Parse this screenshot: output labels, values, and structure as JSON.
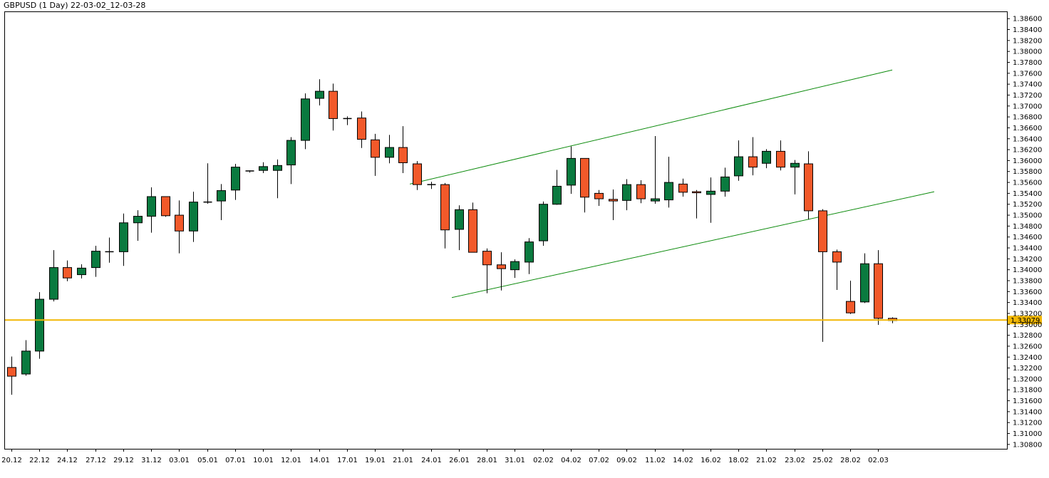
{
  "header": {
    "title": "GBPUSD (1 Day) 22-03-02_12-03-28"
  },
  "colors": {
    "bull": "#0a7a3f",
    "bear": "#f2592a",
    "wick": "#000000",
    "channel": "#0b8a0b",
    "support": "#f2b705",
    "frame": "#000000"
  },
  "chart_data": {
    "type": "candlestick",
    "title": "GBPUSD (1 Day) 22-03-02_12-03-28",
    "ylim": [
      1.3072,
      1.3872
    ],
    "yticks": [
      "1.38600",
      "1.38400",
      "1.38200",
      "1.38000",
      "1.37800",
      "1.37600",
      "1.37400",
      "1.37200",
      "1.37000",
      "1.36800",
      "1.36600",
      "1.36400",
      "1.36200",
      "1.36000",
      "1.35800",
      "1.35600",
      "1.35400",
      "1.35200",
      "1.35000",
      "1.34800",
      "1.34600",
      "1.34400",
      "1.34200",
      "1.34000",
      "1.33800",
      "1.33600",
      "1.33400",
      "1.33200",
      "1.33000",
      "1.32800",
      "1.32600",
      "1.32400",
      "1.32200",
      "1.32000",
      "1.31800",
      "1.31600",
      "1.31400",
      "1.31200",
      "1.31000",
      "1.30800"
    ],
    "xticks": [
      {
        "label": "20.12",
        "index": 0
      },
      {
        "label": "22.12",
        "index": 2
      },
      {
        "label": "24.12",
        "index": 4
      },
      {
        "label": "27.12",
        "index": 6
      },
      {
        "label": "29.12",
        "index": 8
      },
      {
        "label": "31.12",
        "index": 10
      },
      {
        "label": "03.01",
        "index": 12
      },
      {
        "label": "05.01",
        "index": 14
      },
      {
        "label": "07.01",
        "index": 16
      },
      {
        "label": "10.01",
        "index": 18
      },
      {
        "label": "12.01",
        "index": 20
      },
      {
        "label": "14.01",
        "index": 22
      },
      {
        "label": "17.01",
        "index": 24
      },
      {
        "label": "19.01",
        "index": 26
      },
      {
        "label": "21.01",
        "index": 28
      },
      {
        "label": "24.01",
        "index": 30
      },
      {
        "label": "26.01",
        "index": 32
      },
      {
        "label": "28.01",
        "index": 34
      },
      {
        "label": "31.01",
        "index": 36
      },
      {
        "label": "02.02",
        "index": 38
      },
      {
        "label": "04.02",
        "index": 40
      },
      {
        "label": "07.02",
        "index": 42
      },
      {
        "label": "09.02",
        "index": 44
      },
      {
        "label": "11.02",
        "index": 46
      },
      {
        "label": "14.02",
        "index": 48
      },
      {
        "label": "16.02",
        "index": 50
      },
      {
        "label": "18.02",
        "index": 52
      },
      {
        "label": "21.02",
        "index": 54
      },
      {
        "label": "23.02",
        "index": 56
      },
      {
        "label": "25.02",
        "index": 58
      },
      {
        "label": "28.02",
        "index": 60
      },
      {
        "label": "02.03",
        "index": 62
      }
    ],
    "candles": [
      {
        "o": 1.3221,
        "h": 1.3241,
        "l": 1.3171,
        "c": 1.3205
      },
      {
        "o": 1.3209,
        "h": 1.3271,
        "l": 1.3206,
        "c": 1.3251
      },
      {
        "o": 1.3251,
        "h": 1.3359,
        "l": 1.3237,
        "c": 1.3346
      },
      {
        "o": 1.3346,
        "h": 1.3436,
        "l": 1.3342,
        "c": 1.3404
      },
      {
        "o": 1.3404,
        "h": 1.3417,
        "l": 1.3379,
        "c": 1.3385
      },
      {
        "o": 1.3391,
        "h": 1.341,
        "l": 1.3384,
        "c": 1.3403
      },
      {
        "o": 1.3404,
        "h": 1.3444,
        "l": 1.3387,
        "c": 1.3434
      },
      {
        "o": 1.3433,
        "h": 1.3459,
        "l": 1.3413,
        "c": 1.3433
      },
      {
        "o": 1.3433,
        "h": 1.3503,
        "l": 1.3407,
        "c": 1.3486
      },
      {
        "o": 1.3486,
        "h": 1.3509,
        "l": 1.3453,
        "c": 1.3498
      },
      {
        "o": 1.3498,
        "h": 1.3551,
        "l": 1.3468,
        "c": 1.3534
      },
      {
        "o": 1.3534,
        "h": 1.3534,
        "l": 1.3497,
        "c": 1.3499
      },
      {
        "o": 1.35,
        "h": 1.3527,
        "l": 1.343,
        "c": 1.3471
      },
      {
        "o": 1.3471,
        "h": 1.3543,
        "l": 1.3451,
        "c": 1.3524
      },
      {
        "o": 1.3523,
        "h": 1.3595,
        "l": 1.3521,
        "c": 1.3524
      },
      {
        "o": 1.3526,
        "h": 1.3557,
        "l": 1.3491,
        "c": 1.3545
      },
      {
        "o": 1.3546,
        "h": 1.3594,
        "l": 1.3528,
        "c": 1.3588
      },
      {
        "o": 1.358,
        "h": 1.3582,
        "l": 1.3578,
        "c": 1.3581
      },
      {
        "o": 1.3582,
        "h": 1.3597,
        "l": 1.3577,
        "c": 1.3589
      },
      {
        "o": 1.3582,
        "h": 1.3602,
        "l": 1.3531,
        "c": 1.3591
      },
      {
        "o": 1.3592,
        "h": 1.3643,
        "l": 1.3557,
        "c": 1.3637
      },
      {
        "o": 1.3637,
        "h": 1.3723,
        "l": 1.3621,
        "c": 1.3713
      },
      {
        "o": 1.3714,
        "h": 1.3749,
        "l": 1.3701,
        "c": 1.3727
      },
      {
        "o": 1.3727,
        "h": 1.3741,
        "l": 1.3655,
        "c": 1.3677
      },
      {
        "o": 1.3677,
        "h": 1.3681,
        "l": 1.3665,
        "c": 1.3677
      },
      {
        "o": 1.3678,
        "h": 1.369,
        "l": 1.3623,
        "c": 1.3639
      },
      {
        "o": 1.3638,
        "h": 1.3649,
        "l": 1.3572,
        "c": 1.3606
      },
      {
        "o": 1.3606,
        "h": 1.3647,
        "l": 1.3595,
        "c": 1.3624
      },
      {
        "o": 1.3624,
        "h": 1.3663,
        "l": 1.3577,
        "c": 1.3596
      },
      {
        "o": 1.3594,
        "h": 1.3599,
        "l": 1.3546,
        "c": 1.3556
      },
      {
        "o": 1.3556,
        "h": 1.3561,
        "l": 1.3548,
        "c": 1.3556
      },
      {
        "o": 1.3556,
        "h": 1.3559,
        "l": 1.3439,
        "c": 1.3473
      },
      {
        "o": 1.3474,
        "h": 1.3518,
        "l": 1.3436,
        "c": 1.351
      },
      {
        "o": 1.351,
        "h": 1.3523,
        "l": 1.3432,
        "c": 1.3432
      },
      {
        "o": 1.3434,
        "h": 1.3439,
        "l": 1.3357,
        "c": 1.3409
      },
      {
        "o": 1.3409,
        "h": 1.3432,
        "l": 1.3362,
        "c": 1.3402
      },
      {
        "o": 1.34,
        "h": 1.3419,
        "l": 1.3385,
        "c": 1.3415
      },
      {
        "o": 1.3414,
        "h": 1.3458,
        "l": 1.3392,
        "c": 1.3451
      },
      {
        "o": 1.3453,
        "h": 1.3525,
        "l": 1.3444,
        "c": 1.352
      },
      {
        "o": 1.352,
        "h": 1.3583,
        "l": 1.3519,
        "c": 1.3553
      },
      {
        "o": 1.3555,
        "h": 1.3626,
        "l": 1.3539,
        "c": 1.3604
      },
      {
        "o": 1.3604,
        "h": 1.3604,
        "l": 1.3505,
        "c": 1.3533
      },
      {
        "o": 1.354,
        "h": 1.3546,
        "l": 1.3517,
        "c": 1.353
      },
      {
        "o": 1.3529,
        "h": 1.3547,
        "l": 1.3491,
        "c": 1.3526
      },
      {
        "o": 1.3527,
        "h": 1.3566,
        "l": 1.3509,
        "c": 1.3556
      },
      {
        "o": 1.3556,
        "h": 1.3564,
        "l": 1.3522,
        "c": 1.353
      },
      {
        "o": 1.3526,
        "h": 1.3645,
        "l": 1.3521,
        "c": 1.353
      },
      {
        "o": 1.3528,
        "h": 1.3607,
        "l": 1.3514,
        "c": 1.356
      },
      {
        "o": 1.3557,
        "h": 1.3567,
        "l": 1.3534,
        "c": 1.3542
      },
      {
        "o": 1.3543,
        "h": 1.3546,
        "l": 1.3494,
        "c": 1.3541
      },
      {
        "o": 1.3538,
        "h": 1.3569,
        "l": 1.3486,
        "c": 1.3544
      },
      {
        "o": 1.3544,
        "h": 1.3587,
        "l": 1.3534,
        "c": 1.357
      },
      {
        "o": 1.3572,
        "h": 1.3637,
        "l": 1.3563,
        "c": 1.3607
      },
      {
        "o": 1.3607,
        "h": 1.3643,
        "l": 1.3573,
        "c": 1.3588
      },
      {
        "o": 1.3595,
        "h": 1.3621,
        "l": 1.3586,
        "c": 1.3617
      },
      {
        "o": 1.3617,
        "h": 1.3637,
        "l": 1.3582,
        "c": 1.3588
      },
      {
        "o": 1.3588,
        "h": 1.3601,
        "l": 1.3538,
        "c": 1.3595
      },
      {
        "o": 1.3594,
        "h": 1.3617,
        "l": 1.3492,
        "c": 1.3508
      },
      {
        "o": 1.3508,
        "h": 1.3511,
        "l": 1.3268,
        "c": 1.3433
      },
      {
        "o": 1.3433,
        "h": 1.3437,
        "l": 1.3363,
        "c": 1.3414
      },
      {
        "o": 1.3342,
        "h": 1.338,
        "l": 1.3319,
        "c": 1.3321
      },
      {
        "o": 1.3341,
        "h": 1.343,
        "l": 1.3339,
        "c": 1.3411
      },
      {
        "o": 1.3411,
        "h": 1.3436,
        "l": 1.3299,
        "c": 1.3311
      },
      {
        "o": 1.3311,
        "h": 1.3313,
        "l": 1.3302,
        "c": 1.3307
      }
    ],
    "channel": {
      "upper": {
        "from_index": 28.5,
        "from_price": 1.3557,
        "to_index": 63,
        "to_price": 1.3766
      },
      "lower": {
        "from_index": 31.5,
        "from_price": 1.3349,
        "to_index": 66,
        "to_price": 1.3543
      }
    },
    "support_line": 1.33079,
    "last_price_label": "1.33079"
  }
}
